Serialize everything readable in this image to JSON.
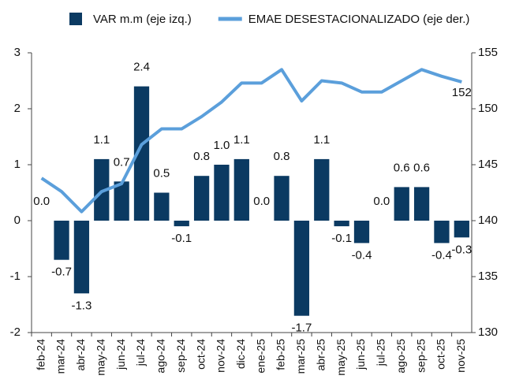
{
  "chart_data": {
    "type": "bar-line",
    "categories": [
      "feb-24",
      "mar-24",
      "abr-24",
      "may-24",
      "jun-24",
      "jul-24",
      "ago-24",
      "sep-24",
      "oct-24",
      "nov-24",
      "dic-24",
      "ene-25",
      "feb-25",
      "mar-25",
      "abr-25",
      "may-25",
      "jun-25",
      "jul-25",
      "ago-25",
      "sep-25",
      "oct-25",
      "nov-25"
    ],
    "series": [
      {
        "name": "VAR m.m (eje izq.)",
        "type": "bar",
        "color": "#0b3a62",
        "values": [
          0.0,
          -0.7,
          -1.3,
          1.1,
          0.7,
          2.4,
          0.5,
          -0.1,
          0.8,
          1.0,
          1.1,
          0.0,
          0.8,
          -1.7,
          1.1,
          -0.1,
          -0.4,
          0.0,
          0.6,
          0.6,
          -0.4,
          -0.3
        ],
        "value_labels": [
          "0.0",
          "-0.7",
          "-1.3",
          "1.1",
          "0.7",
          "2.4",
          "0.5",
          "-0.1",
          "0.8",
          "1.0",
          "1.1",
          "0.0",
          "0.8",
          "-1.7",
          "1.1",
          "-0.1",
          "-0.4",
          "0.0",
          "0.6",
          "0.6",
          "-0.4",
          "-0.3"
        ]
      },
      {
        "name": "EMAE DESESTACIONALIZADO (eje der.)",
        "type": "line",
        "axis": "y2",
        "color": "#5b9fdb",
        "values": [
          143.8,
          142.6,
          140.8,
          142.6,
          143.3,
          146.8,
          148.2,
          148.2,
          149.3,
          150.6,
          152.3,
          152.3,
          153.5,
          150.7,
          152.5,
          152.3,
          151.5,
          151.5,
          152.5,
          153.5,
          152.9,
          152.4
        ],
        "value_labels": [
          null,
          null,
          null,
          null,
          null,
          null,
          null,
          null,
          null,
          null,
          null,
          null,
          null,
          null,
          null,
          null,
          null,
          null,
          null,
          null,
          null,
          "152"
        ]
      }
    ],
    "ylim": [
      -2,
      3
    ],
    "yticks": [
      -2,
      -1,
      0,
      1,
      2,
      3
    ],
    "y2lim": [
      130,
      155
    ],
    "y2ticks": [
      130,
      135,
      140,
      145,
      150,
      155
    ],
    "grid": false,
    "legend": "top"
  }
}
